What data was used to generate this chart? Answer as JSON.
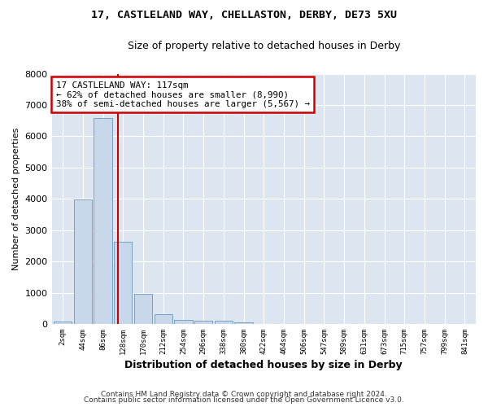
{
  "title1": "17, CASTLELAND WAY, CHELLASTON, DERBY, DE73 5XU",
  "title2": "Size of property relative to detached houses in Derby",
  "xlabel": "Distribution of detached houses by size in Derby",
  "ylabel": "Number of detached properties",
  "bar_color": "#c8d8ea",
  "bar_edge_color": "#6699bb",
  "background_color": "#dde6f0",
  "grid_color": "#ffffff",
  "categories": [
    "2sqm",
    "44sqm",
    "86sqm",
    "128sqm",
    "170sqm",
    "212sqm",
    "254sqm",
    "296sqm",
    "338sqm",
    "380sqm",
    "422sqm",
    "464sqm",
    "506sqm",
    "547sqm",
    "589sqm",
    "631sqm",
    "673sqm",
    "715sqm",
    "757sqm",
    "799sqm",
    "841sqm"
  ],
  "values": [
    80,
    3980,
    6580,
    2620,
    950,
    310,
    125,
    115,
    90,
    60,
    0,
    0,
    0,
    0,
    0,
    0,
    0,
    0,
    0,
    0,
    0
  ],
  "ylim": [
    0,
    8000
  ],
  "yticks": [
    0,
    1000,
    2000,
    3000,
    4000,
    5000,
    6000,
    7000,
    8000
  ],
  "vline_x": 2.73,
  "annotation_text": "17 CASTLELAND WAY: 117sqm\n← 62% of detached houses are smaller (8,990)\n38% of semi-detached houses are larger (5,567) →",
  "annotation_box_color": "#ffffff",
  "annotation_box_edge": "#cc0000",
  "vline_color": "#cc0000",
  "footer1": "Contains HM Land Registry data © Crown copyright and database right 2024.",
  "footer2": "Contains public sector information licensed under the Open Government Licence v3.0."
}
